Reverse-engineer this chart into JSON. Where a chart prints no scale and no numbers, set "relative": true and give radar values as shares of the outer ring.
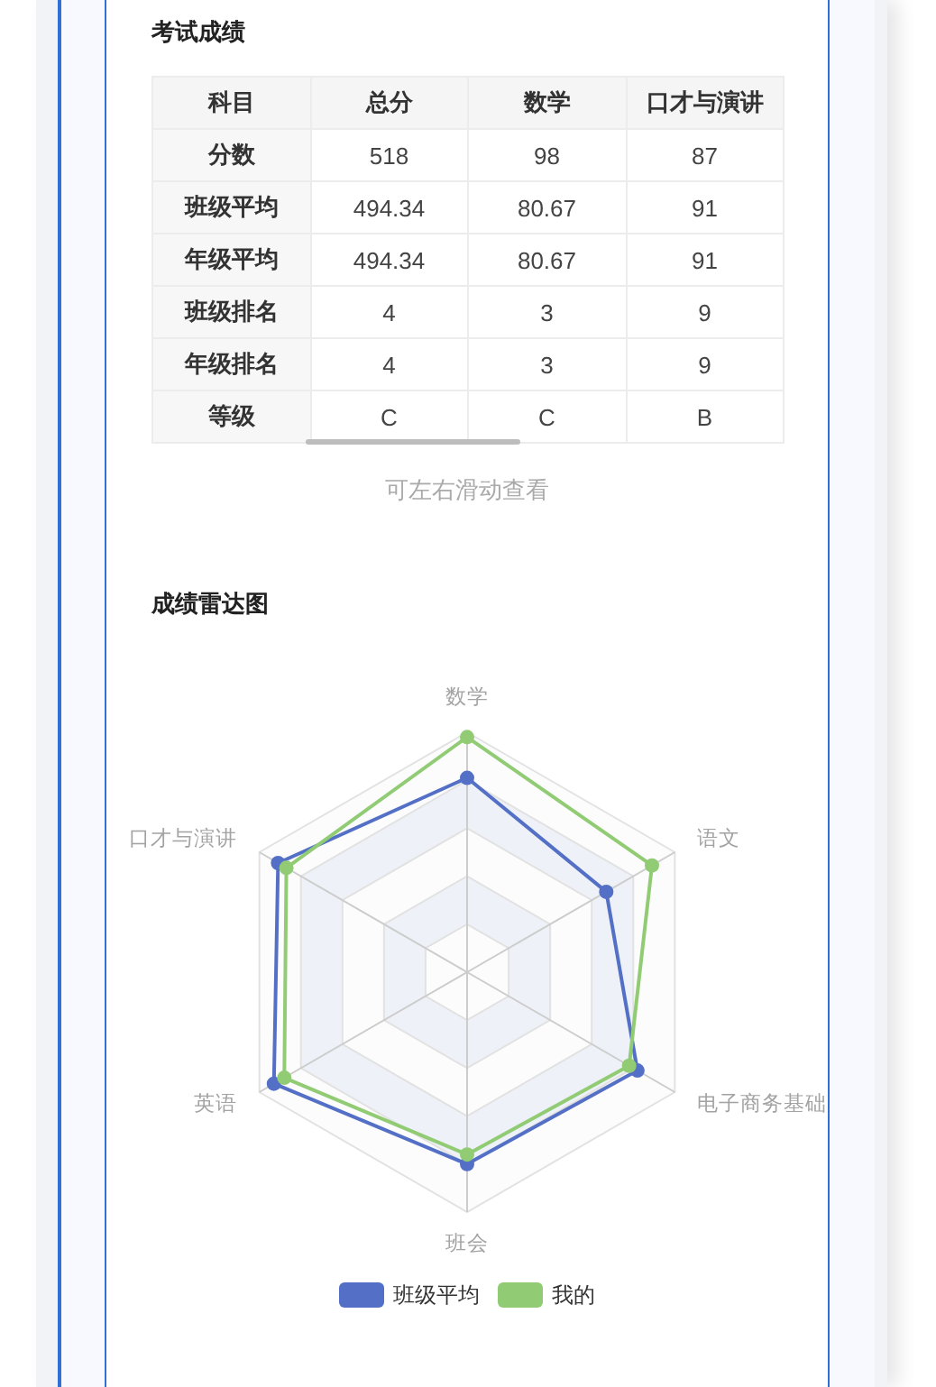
{
  "chart_data": [
    {
      "type": "other",
      "title": "考试成绩",
      "xlabel": "科目",
      "categories": [
        "总分",
        "数学",
        "口才与演讲"
      ],
      "y_categories": [
        "分数",
        "班级平均",
        "年级平均",
        "班级排名",
        "年级排名",
        "等级"
      ],
      "cell_labels": [
        [
          "518",
          "98",
          "87"
        ],
        [
          "494.34",
          "80.67",
          "91"
        ],
        [
          "494.34",
          "80.67",
          "91"
        ],
        [
          "4",
          "3",
          "9"
        ],
        [
          "4",
          "3",
          "9"
        ],
        [
          "C",
          "C",
          "B"
        ]
      ],
      "annotations": [
        "可左右滑动查看"
      ]
    },
    {
      "type": "radar",
      "title": "成绩雷达图",
      "categories": [
        "数学",
        "语文",
        "电子商务基础",
        "班会",
        "英语",
        "口才与演讲"
      ],
      "relative": true,
      "grid": true,
      "legend": "bottom",
      "marker": "circle",
      "line_style": "solid",
      "series": [
        {
          "name": "班级平均",
          "color": "#5470c6",
          "values": [
            0.81,
            0.67,
            0.82,
            0.8,
            0.93,
            0.91
          ]
        },
        {
          "name": "我的",
          "color": "#91cc75",
          "values": [
            0.98,
            0.89,
            0.78,
            0.76,
            0.88,
            0.87
          ]
        }
      ]
    }
  ]
}
